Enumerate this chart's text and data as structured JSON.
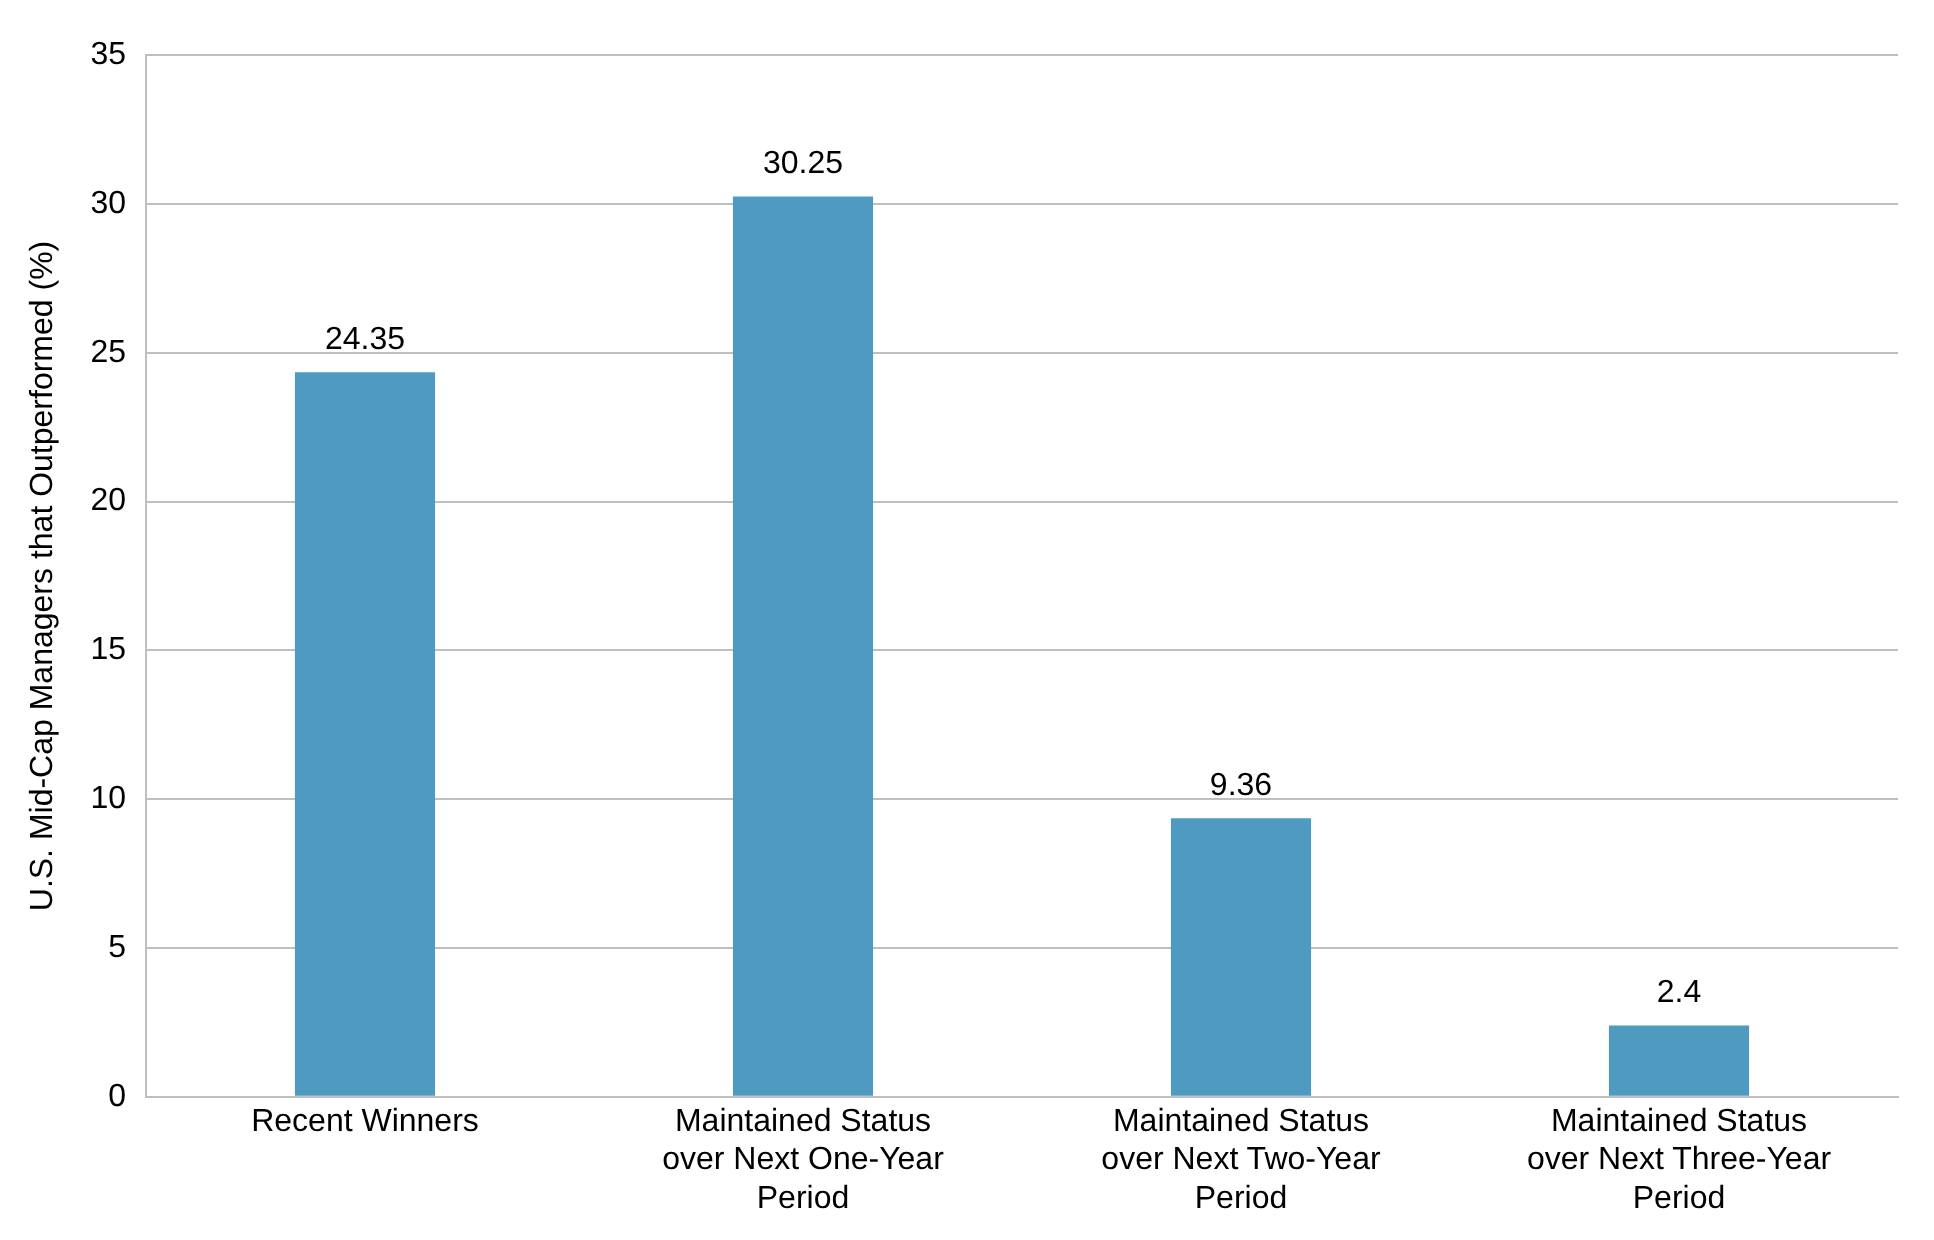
{
  "chart_data": {
    "type": "bar",
    "ylabel": "U.S. Mid-Cap Managers that Outperformed (%)",
    "categories": [
      "Recent Winners",
      "Maintained Status over Next One-Year Period",
      "Maintained Status over Next Two-Year Period",
      "Maintained Status over Next Three-Year Period"
    ],
    "values": [
      24.35,
      30.25,
      9.36,
      2.4
    ],
    "color": "#4f9ac1",
    "ylim": [
      0,
      35
    ],
    "yticks": [
      0,
      5,
      10,
      15,
      20,
      25,
      30,
      35
    ],
    "grid": "y",
    "data_labels": true,
    "legend": false
  }
}
